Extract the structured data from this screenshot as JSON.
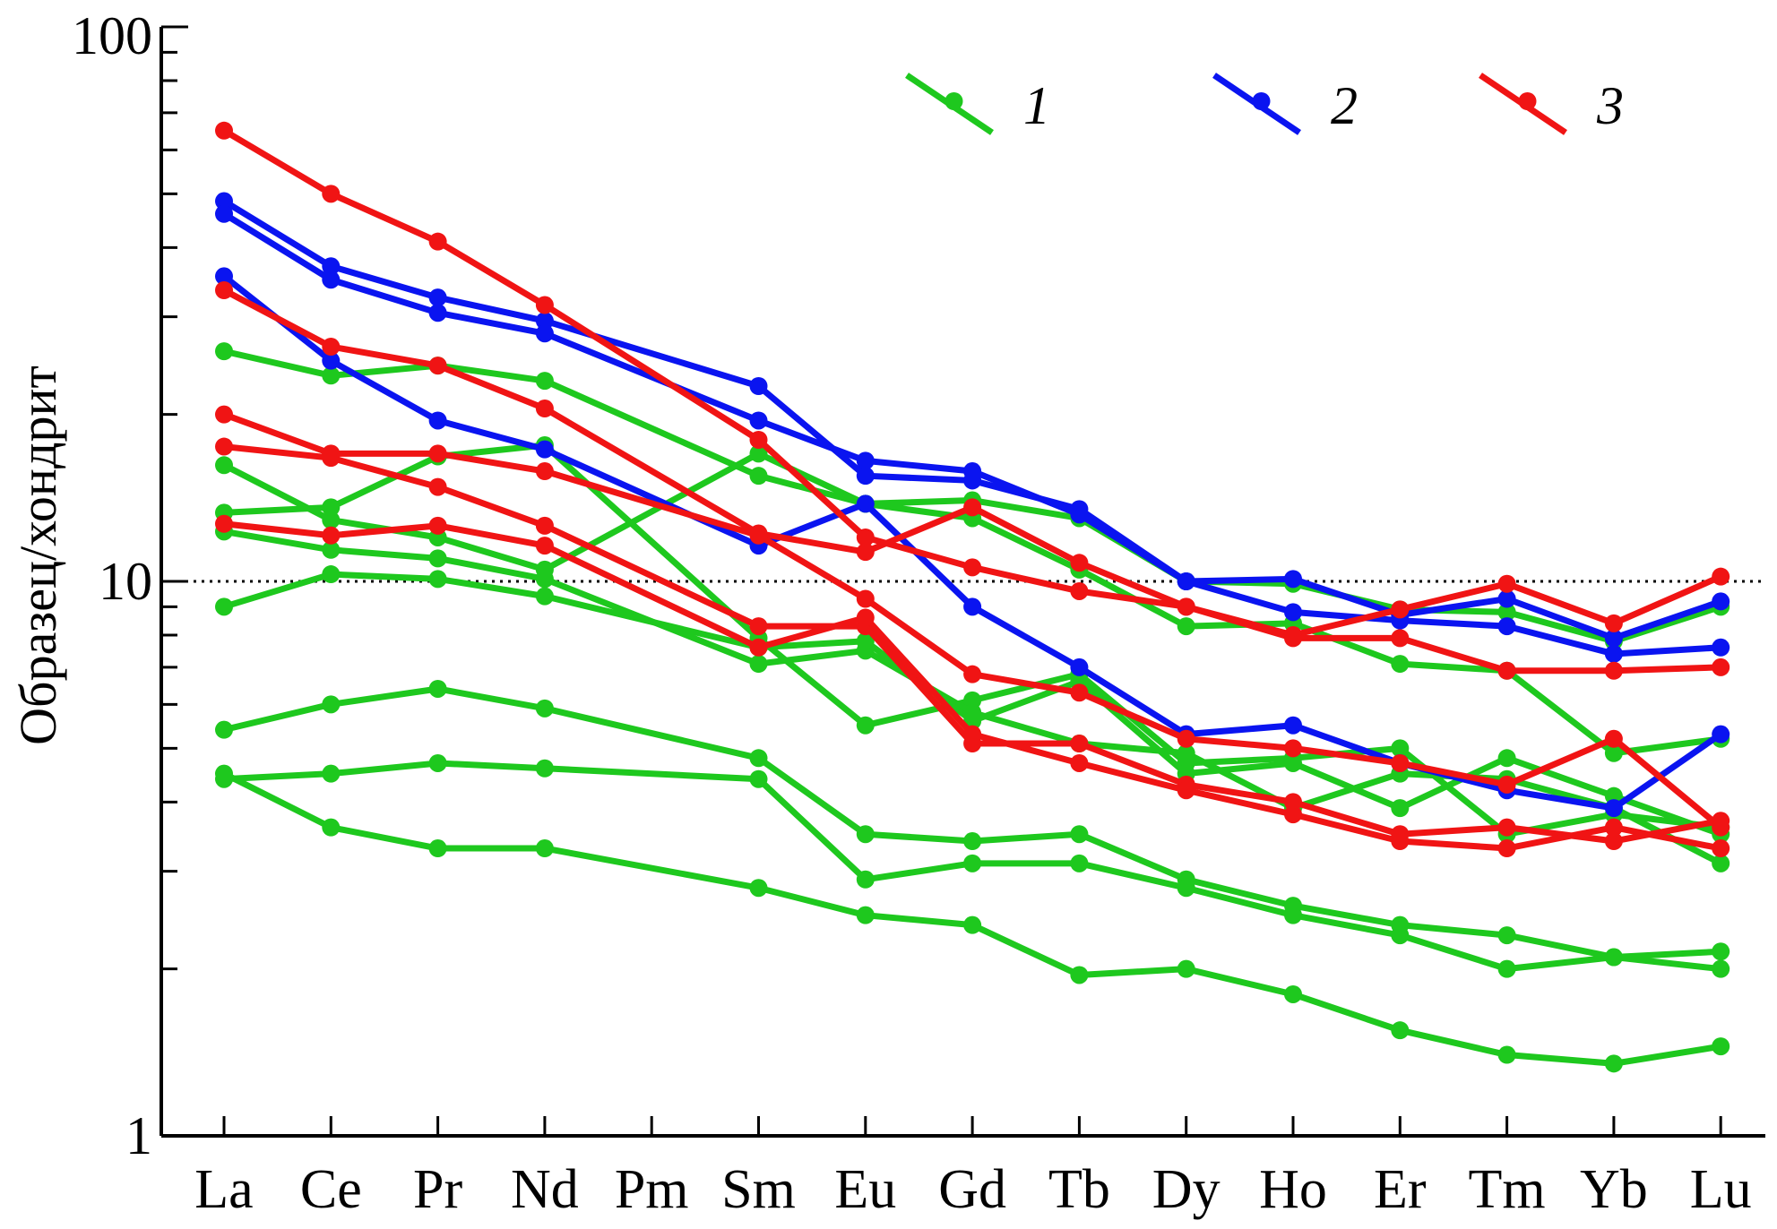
{
  "chart_data": {
    "type": "line",
    "ylabel": "Образец/хондрит",
    "xlabel": "",
    "title": "",
    "yscale": "log",
    "ylim": [
      1,
      100
    ],
    "yticks": [
      "1",
      "10",
      "100"
    ],
    "reference_line": 10,
    "grid": false,
    "legend": {
      "placement": "top-right",
      "entries": [
        {
          "label": "1",
          "color": "#1ec81e"
        },
        {
          "label": "2",
          "color": "#0a14f0"
        },
        {
          "label": "3",
          "color": "#f01414"
        }
      ]
    },
    "categories": [
      "La",
      "Ce",
      "Pr",
      "Nd",
      "Pm",
      "Sm",
      "Eu",
      "Gd",
      "Tb",
      "Dy",
      "Ho",
      "Er",
      "Tm",
      "Yb",
      "Lu"
    ],
    "series": [
      {
        "group": "1",
        "color": "#1ec81e",
        "values": [
          26,
          23.5,
          24.5,
          23,
          null,
          15.5,
          13.8,
          14,
          13,
          10,
          9.9,
          8.9,
          8.8,
          7.8,
          9
        ]
      },
      {
        "group": "1",
        "color": "#1ec81e",
        "values": [
          16.2,
          12.9,
          12,
          10.5,
          null,
          17,
          13.8,
          13,
          10.5,
          8.3,
          8.4,
          7.1,
          6.9,
          4.9,
          5.2
        ]
      },
      {
        "group": "1",
        "color": "#1ec81e",
        "values": [
          13.3,
          13.6,
          16.8,
          17.6,
          null,
          7.9,
          5.5,
          6.1,
          6.8,
          4.7,
          4.8,
          5.0,
          3.5,
          3.8,
          3.6
        ]
      },
      {
        "group": "1",
        "color": "#1ec81e",
        "values": [
          12.3,
          11.4,
          11.0,
          10.1,
          null,
          7.1,
          7.5,
          5.8,
          5.1,
          4.9,
          3.9,
          4.5,
          4.4,
          3.9,
          3.1
        ]
      },
      {
        "group": "1",
        "color": "#1ec81e",
        "values": [
          9.0,
          10.3,
          10.1,
          9.4,
          null,
          7.6,
          7.8,
          5.6,
          6.6,
          4.5,
          4.7,
          3.9,
          4.8,
          4.1,
          3.5
        ]
      },
      {
        "group": "1",
        "color": "#1ec81e",
        "values": [
          5.4,
          6.0,
          6.4,
          5.9,
          null,
          4.8,
          3.5,
          3.4,
          3.5,
          2.9,
          2.6,
          2.4,
          2.3,
          2.1,
          2.0
        ]
      },
      {
        "group": "1",
        "color": "#1ec81e",
        "values": [
          4.4,
          4.5,
          4.7,
          4.6,
          null,
          4.4,
          2.9,
          3.1,
          3.1,
          2.8,
          2.5,
          2.3,
          2.0,
          2.1,
          2.15
        ]
      },
      {
        "group": "1",
        "color": "#1ec81e",
        "values": [
          4.5,
          3.6,
          3.3,
          3.3,
          null,
          2.8,
          2.5,
          2.4,
          1.95,
          2.0,
          1.8,
          1.55,
          1.4,
          1.35,
          1.45
        ]
      },
      {
        "group": "2",
        "color": "#0a14f0",
        "values": [
          48.5,
          37,
          32.5,
          29.5,
          null,
          22.5,
          15.5,
          15.2,
          13.5,
          10,
          10.1,
          8.7,
          9.3,
          7.9,
          9.2
        ]
      },
      {
        "group": "2",
        "color": "#0a14f0",
        "values": [
          46,
          35,
          30.5,
          28,
          null,
          19.5,
          16.5,
          15.8,
          13.2,
          10,
          8.8,
          8.5,
          8.3,
          7.4,
          7.6
        ]
      },
      {
        "group": "2",
        "color": "#0a14f0",
        "values": [
          35.5,
          25,
          19.5,
          17.3,
          null,
          11.6,
          13.8,
          9.0,
          7.0,
          5.3,
          5.5,
          4.7,
          4.2,
          3.9,
          5.3
        ]
      },
      {
        "group": "3",
        "color": "#f01414",
        "values": [
          65,
          50,
          41,
          31.5,
          null,
          18,
          12,
          10.6,
          9.6,
          9.0,
          8.0,
          8.9,
          9.9,
          8.4,
          10.2
        ]
      },
      {
        "group": "3",
        "color": "#f01414",
        "values": [
          33.5,
          26.5,
          24.5,
          20.5,
          null,
          12.2,
          11.3,
          13.6,
          10.8,
          9.0,
          7.9,
          7.9,
          6.9,
          6.9,
          7.0
        ]
      },
      {
        "group": "3",
        "color": "#f01414",
        "values": [
          20,
          17,
          17,
          15.8,
          null,
          12.1,
          9.3,
          6.8,
          6.3,
          5.2,
          5.0,
          4.7,
          4.3,
          5.2,
          3.6
        ]
      },
      {
        "group": "3",
        "color": "#f01414",
        "values": [
          17.5,
          16.7,
          14.8,
          12.6,
          null,
          8.3,
          8.3,
          5.1,
          5.1,
          4.3,
          4.0,
          3.5,
          3.6,
          3.4,
          3.7
        ]
      },
      {
        "group": "3",
        "color": "#f01414",
        "values": [
          12.7,
          12.1,
          12.6,
          11.6,
          null,
          7.6,
          8.6,
          5.3,
          4.7,
          4.2,
          3.8,
          3.4,
          3.3,
          3.6,
          3.3
        ]
      }
    ]
  }
}
